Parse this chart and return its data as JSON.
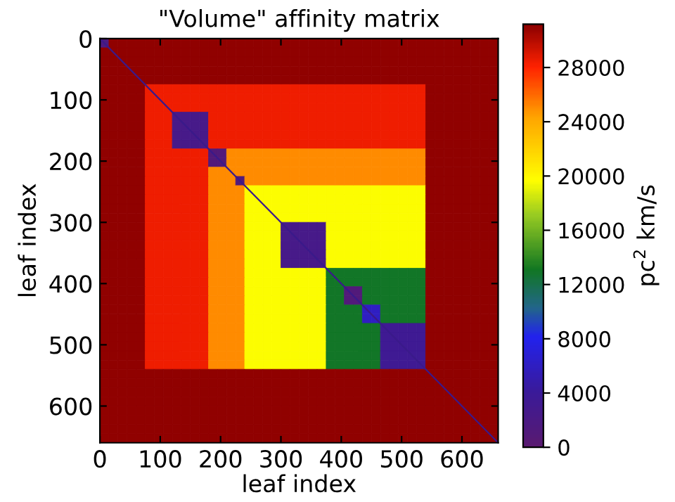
{
  "chart_data": {
    "type": "heatmap",
    "title": "\"Volume\" affinity matrix",
    "xlabel": "leaf index",
    "ylabel": "leaf index",
    "clabel": "pc$^{2}$ km/s",
    "cells": [
      [
        1500,
        31000,
        31000,
        31000,
        31000,
        31000,
        31000,
        31000,
        31000,
        31000,
        31000,
        31000,
        31000,
        31000,
        31000,
        31000,
        31000,
        31000,
        31000,
        31000,
        31000,
        31000,
        31000,
        31000,
        31000,
        31000,
        31000,
        31000,
        31000,
        31000,
        31000,
        31000,
        31000,
        31000,
        31000,
        31000,
        31000,
        31000,
        31000,
        31000,
        31000,
        31000,
        31000,
        31000
      ],
      [
        31000,
        31000,
        31000,
        31000,
        31000,
        31000,
        31000,
        31000,
        31000,
        31000,
        31000,
        31000,
        31000,
        31000,
        31000,
        31000,
        31000,
        31000,
        31000,
        31000,
        31000,
        31000,
        31000,
        31000,
        31000,
        31000,
        31000,
        31000,
        31000,
        31000,
        31000,
        31000,
        31000,
        31000,
        31000,
        31000,
        31000,
        31000,
        31000,
        31000,
        31000,
        31000,
        31000,
        31000
      ],
      [
        31000,
        31000,
        31000,
        31000,
        31000,
        31000,
        31000,
        31000,
        31000,
        31000,
        31000,
        31000,
        31000,
        31000,
        31000,
        31000,
        31000,
        31000,
        31000,
        31000,
        31000,
        31000,
        31000,
        31000,
        31000,
        31000,
        31000,
        31000,
        31000,
        31000,
        31000,
        31000,
        31000,
        31000,
        31000,
        31000,
        31000,
        31000,
        31000,
        31000,
        31000,
        31000,
        31000,
        31000
      ],
      [
        31000,
        31000,
        31000,
        31000,
        31000,
        31000,
        31000,
        31000,
        31000,
        31000,
        31000,
        31000,
        31000,
        31000,
        31000,
        31000,
        31000,
        31000,
        31000,
        31000,
        31000,
        31000,
        31000,
        31000,
        31000,
        31000,
        31000,
        31000,
        31000,
        31000,
        31000,
        31000,
        31000,
        31000,
        31000,
        31000,
        31000,
        31000,
        31000,
        31000,
        31000,
        31000,
        31000,
        31000
      ],
      [
        31000,
        31000,
        31000,
        31000,
        31000,
        31000,
        31000,
        31000,
        31000,
        31000,
        31000,
        31000,
        31000,
        31000,
        31000,
        31000,
        31000,
        31000,
        31000,
        31000,
        31000,
        31000,
        31000,
        31000,
        31000,
        31000,
        31000,
        31000,
        31000,
        31000,
        31000,
        31000,
        31000,
        31000,
        31000,
        31000,
        31000,
        31000,
        31000,
        31000,
        31000,
        31000,
        31000,
        31000
      ],
      [
        31000,
        31000,
        31000,
        31000,
        31000,
        28500,
        28500,
        28500,
        28500,
        28500,
        28500,
        28500,
        28500,
        28500,
        28500,
        28500,
        28500,
        28500,
        28500,
        28500,
        28500,
        28500,
        28500,
        28500,
        28500,
        28500,
        28500,
        28500,
        28500,
        28500,
        28500,
        28500,
        28500,
        28500,
        28500,
        28500,
        31000,
        31000,
        31000,
        31000,
        31000,
        31000,
        31000,
        31000
      ],
      [
        31000,
        31000,
        31000,
        31000,
        31000,
        28500,
        28500,
        28500,
        28500,
        28500,
        28500,
        28500,
        28500,
        28500,
        28500,
        28500,
        28500,
        28500,
        28500,
        28500,
        28500,
        28500,
        28500,
        28500,
        28500,
        28500,
        28500,
        28500,
        28500,
        28500,
        28500,
        28500,
        28500,
        28500,
        28500,
        28500,
        31000,
        31000,
        31000,
        31000,
        31000,
        31000,
        31000,
        31000
      ],
      [
        31000,
        31000,
        31000,
        31000,
        31000,
        28500,
        28500,
        28500,
        28500,
        28500,
        28500,
        28500,
        28500,
        28500,
        28500,
        28500,
        28500,
        28500,
        28500,
        28500,
        28500,
        28500,
        28500,
        28500,
        28500,
        28500,
        28500,
        28500,
        28500,
        28500,
        28500,
        28500,
        28500,
        28500,
        28500,
        28500,
        31000,
        31000,
        31000,
        31000,
        31000,
        31000,
        31000,
        31000
      ],
      [
        31000,
        31000,
        31000,
        31000,
        31000,
        28500,
        28500,
        28500,
        2500,
        2500,
        2500,
        2500,
        28500,
        28500,
        28500,
        28500,
        28500,
        28500,
        28500,
        28500,
        28500,
        28500,
        28500,
        28500,
        28500,
        28500,
        28500,
        28500,
        28500,
        28500,
        28500,
        28500,
        28500,
        28500,
        28500,
        28500,
        31000,
        31000,
        31000,
        31000,
        31000,
        31000,
        31000,
        31000
      ],
      [
        31000,
        31000,
        31000,
        31000,
        31000,
        28500,
        28500,
        28500,
        2500,
        2500,
        2500,
        2500,
        28500,
        28500,
        28500,
        28500,
        28500,
        28500,
        28500,
        28500,
        28500,
        28500,
        28500,
        28500,
        28500,
        28500,
        28500,
        28500,
        28500,
        28500,
        28500,
        28500,
        28500,
        28500,
        28500,
        28500,
        31000,
        31000,
        31000,
        31000,
        31000,
        31000,
        31000,
        31000
      ],
      [
        31000,
        31000,
        31000,
        31000,
        31000,
        28500,
        28500,
        28500,
        2500,
        2500,
        2500,
        2500,
        28500,
        28500,
        28500,
        28500,
        28500,
        28500,
        28500,
        28500,
        28500,
        28500,
        28500,
        28500,
        28500,
        28500,
        28500,
        28500,
        28500,
        28500,
        28500,
        28500,
        28500,
        28500,
        28500,
        28500,
        31000,
        31000,
        31000,
        31000,
        31000,
        31000,
        31000,
        31000
      ],
      [
        31000,
        31000,
        31000,
        31000,
        31000,
        28500,
        28500,
        28500,
        2500,
        2500,
        2500,
        2500,
        28500,
        28500,
        28500,
        28500,
        28500,
        28500,
        28500,
        28500,
        28500,
        28500,
        28500,
        28500,
        28500,
        28500,
        28500,
        28500,
        28500,
        28500,
        28500,
        28500,
        28500,
        28500,
        28500,
        28500,
        31000,
        31000,
        31000,
        31000,
        31000,
        31000,
        31000,
        31000
      ],
      [
        31000,
        31000,
        31000,
        31000,
        31000,
        28500,
        28500,
        28500,
        28500,
        28500,
        28500,
        28500,
        1000,
        1000,
        25000,
        25000,
        25000,
        25000,
        25000,
        25000,
        25000,
        25000,
        25000,
        25000,
        25000,
        25000,
        25000,
        25000,
        25000,
        25000,
        25000,
        25000,
        25000,
        25000,
        25000,
        25000,
        31000,
        31000,
        31000,
        31000,
        31000,
        31000,
        31000,
        31000
      ],
      [
        31000,
        31000,
        31000,
        31000,
        31000,
        28500,
        28500,
        28500,
        28500,
        28500,
        28500,
        28500,
        1000,
        1000,
        25000,
        25000,
        25000,
        25000,
        25000,
        25000,
        25000,
        25000,
        25000,
        25000,
        25000,
        25000,
        25000,
        25000,
        25000,
        25000,
        25000,
        25000,
        25000,
        25000,
        25000,
        25000,
        31000,
        31000,
        31000,
        31000,
        31000,
        31000,
        31000,
        31000
      ],
      [
        31000,
        31000,
        31000,
        31000,
        31000,
        28500,
        28500,
        28500,
        28500,
        28500,
        28500,
        28500,
        25000,
        25000,
        25000,
        25000,
        25000,
        25000,
        25000,
        25000,
        25000,
        25000,
        25000,
        25000,
        25000,
        25000,
        25000,
        25000,
        25000,
        25000,
        25000,
        25000,
        25000,
        25000,
        25000,
        25000,
        31000,
        31000,
        31000,
        31000,
        31000,
        31000,
        31000,
        31000
      ],
      [
        31000,
        31000,
        31000,
        31000,
        31000,
        28500,
        28500,
        28500,
        28500,
        28500,
        28500,
        28500,
        25000,
        25000,
        25000,
        1000,
        25000,
        25000,
        25000,
        25000,
        25000,
        25000,
        25000,
        25000,
        25000,
        25000,
        25000,
        25000,
        25000,
        25000,
        25000,
        25000,
        25000,
        25000,
        25000,
        25000,
        31000,
        31000,
        31000,
        31000,
        31000,
        31000,
        31000,
        31000
      ],
      [
        31000,
        31000,
        31000,
        31000,
        31000,
        28500,
        28500,
        28500,
        28500,
        28500,
        28500,
        28500,
        25000,
        25000,
        25000,
        25000,
        19500,
        19500,
        19500,
        19500,
        19500,
        19500,
        19500,
        19500,
        19500,
        19500,
        19500,
        19500,
        19500,
        19500,
        19500,
        19500,
        19500,
        19500,
        19500,
        19500,
        31000,
        31000,
        31000,
        31000,
        31000,
        31000,
        31000,
        31000
      ],
      [
        31000,
        31000,
        31000,
        31000,
        31000,
        28500,
        28500,
        28500,
        28500,
        28500,
        28500,
        28500,
        25000,
        25000,
        25000,
        25000,
        19500,
        19500,
        19500,
        19500,
        19500,
        19500,
        19500,
        19500,
        19500,
        19500,
        19500,
        19500,
        19500,
        19500,
        19500,
        19500,
        19500,
        19500,
        19500,
        19500,
        31000,
        31000,
        31000,
        31000,
        31000,
        31000,
        31000,
        31000
      ],
      [
        31000,
        31000,
        31000,
        31000,
        31000,
        28500,
        28500,
        28500,
        28500,
        28500,
        28500,
        28500,
        25000,
        25000,
        25000,
        25000,
        19500,
        19500,
        19500,
        19500,
        19500,
        19500,
        19500,
        19500,
        19500,
        19500,
        19500,
        19500,
        19500,
        19500,
        19500,
        19500,
        19500,
        19500,
        19500,
        19500,
        31000,
        31000,
        31000,
        31000,
        31000,
        31000,
        31000,
        31000
      ],
      [
        31000,
        31000,
        31000,
        31000,
        31000,
        28500,
        28500,
        28500,
        28500,
        28500,
        28500,
        28500,
        25000,
        25000,
        25000,
        25000,
        19500,
        19500,
        19500,
        19500,
        19500,
        19500,
        19500,
        19500,
        19500,
        19500,
        19500,
        19500,
        19500,
        19500,
        19500,
        19500,
        19500,
        19500,
        19500,
        19500,
        31000,
        31000,
        31000,
        31000,
        31000,
        31000,
        31000,
        31000
      ],
      [
        31000,
        31000,
        31000,
        31000,
        31000,
        28500,
        28500,
        28500,
        28500,
        28500,
        28500,
        28500,
        25000,
        25000,
        25000,
        25000,
        19500,
        19500,
        19500,
        19500,
        2500,
        2500,
        2500,
        2500,
        2500,
        19500,
        19500,
        19500,
        19500,
        19500,
        19500,
        19500,
        19500,
        19500,
        19500,
        19500,
        31000,
        31000,
        31000,
        31000,
        31000,
        31000,
        31000,
        31000
      ],
      [
        31000,
        31000,
        31000,
        31000,
        31000,
        28500,
        28500,
        28500,
        28500,
        28500,
        28500,
        28500,
        25000,
        25000,
        25000,
        25000,
        19500,
        19500,
        19500,
        19500,
        2500,
        2500,
        2500,
        2500,
        2500,
        19500,
        19500,
        19500,
        19500,
        19500,
        19500,
        19500,
        19500,
        19500,
        19500,
        19500,
        31000,
        31000,
        31000,
        31000,
        31000,
        31000,
        31000,
        31000
      ],
      [
        31000,
        31000,
        31000,
        31000,
        31000,
        28500,
        28500,
        28500,
        28500,
        28500,
        28500,
        28500,
        25000,
        25000,
        25000,
        25000,
        19500,
        19500,
        19500,
        19500,
        2500,
        2500,
        2500,
        2500,
        2500,
        19500,
        19500,
        19500,
        19500,
        19500,
        19500,
        19500,
        19500,
        19500,
        19500,
        19500,
        31000,
        31000,
        31000,
        31000,
        31000,
        31000,
        31000,
        31000
      ],
      [
        31000,
        31000,
        31000,
        31000,
        31000,
        28500,
        28500,
        28500,
        28500,
        28500,
        28500,
        28500,
        25000,
        25000,
        25000,
        25000,
        19500,
        19500,
        19500,
        19500,
        2500,
        2500,
        2500,
        2500,
        2500,
        19500,
        19500,
        19500,
        19500,
        19500,
        19500,
        19500,
        19500,
        19500,
        19500,
        19500,
        31000,
        31000,
        31000,
        31000,
        31000,
        31000,
        31000,
        31000
      ],
      [
        31000,
        31000,
        31000,
        31000,
        31000,
        28500,
        28500,
        28500,
        28500,
        28500,
        28500,
        28500,
        25000,
        25000,
        25000,
        25000,
        19500,
        19500,
        19500,
        19500,
        2500,
        2500,
        2500,
        2500,
        2500,
        19500,
        19500,
        19500,
        19500,
        19500,
        19500,
        19500,
        19500,
        19500,
        19500,
        19500,
        31000,
        31000,
        31000,
        31000,
        31000,
        31000,
        31000,
        31000
      ],
      [
        31000,
        31000,
        31000,
        31000,
        31000,
        28500,
        28500,
        28500,
        28500,
        28500,
        28500,
        28500,
        25000,
        25000,
        25000,
        25000,
        19500,
        19500,
        19500,
        19500,
        19500,
        19500,
        19500,
        19500,
        19500,
        13000,
        13000,
        13000,
        13000,
        13000,
        13000,
        13000,
        13000,
        13000,
        13000,
        13000,
        31000,
        31000,
        31000,
        31000,
        31000,
        31000,
        31000,
        31000
      ],
      [
        31000,
        31000,
        31000,
        31000,
        31000,
        28500,
        28500,
        28500,
        28500,
        28500,
        28500,
        28500,
        25000,
        25000,
        25000,
        25000,
        19500,
        19500,
        19500,
        19500,
        19500,
        19500,
        19500,
        19500,
        19500,
        13000,
        13000,
        13000,
        13000,
        13000,
        13000,
        13000,
        13000,
        13000,
        13000,
        13000,
        31000,
        31000,
        31000,
        31000,
        31000,
        31000,
        31000,
        31000
      ],
      [
        31000,
        31000,
        31000,
        31000,
        31000,
        28500,
        28500,
        28500,
        28500,
        28500,
        28500,
        28500,
        25000,
        25000,
        25000,
        25000,
        19500,
        19500,
        19500,
        19500,
        19500,
        19500,
        19500,
        19500,
        19500,
        13000,
        13000,
        1000,
        1000,
        13000,
        13000,
        13000,
        13000,
        13000,
        13000,
        13000,
        31000,
        31000,
        31000,
        31000,
        31000,
        31000,
        31000,
        31000
      ],
      [
        31000,
        31000,
        31000,
        31000,
        31000,
        28500,
        28500,
        28500,
        28500,
        28500,
        28500,
        28500,
        25000,
        25000,
        25000,
        25000,
        19500,
        19500,
        19500,
        19500,
        19500,
        19500,
        19500,
        19500,
        19500,
        13000,
        13000,
        1000,
        1000,
        13000,
        13000,
        13000,
        13000,
        13000,
        13000,
        13000,
        31000,
        31000,
        31000,
        31000,
        31000,
        31000,
        31000,
        31000
      ],
      [
        31000,
        31000,
        31000,
        31000,
        31000,
        28500,
        28500,
        28500,
        28500,
        28500,
        28500,
        28500,
        25000,
        25000,
        25000,
        25000,
        19500,
        19500,
        19500,
        19500,
        19500,
        19500,
        19500,
        19500,
        19500,
        13000,
        13000,
        13000,
        13000,
        6000,
        6000,
        13000,
        13000,
        13000,
        13000,
        13000,
        31000,
        31000,
        31000,
        31000,
        31000,
        31000,
        31000,
        31000
      ],
      [
        31000,
        31000,
        31000,
        31000,
        31000,
        28500,
        28500,
        28500,
        28500,
        28500,
        28500,
        28500,
        25000,
        25000,
        25000,
        25000,
        19500,
        19500,
        19500,
        19500,
        19500,
        19500,
        19500,
        19500,
        19500,
        13000,
        13000,
        13000,
        13000,
        6000,
        6000,
        13000,
        13000,
        13000,
        13000,
        13000,
        31000,
        31000,
        31000,
        31000,
        31000,
        31000,
        31000,
        31000
      ],
      [
        31000,
        31000,
        31000,
        31000,
        31000,
        28500,
        28500,
        28500,
        28500,
        28500,
        28500,
        28500,
        25000,
        25000,
        25000,
        25000,
        19500,
        19500,
        19500,
        19500,
        19500,
        19500,
        19500,
        19500,
        19500,
        13000,
        13000,
        13000,
        13000,
        13000,
        13000,
        3500,
        3500,
        3500,
        3500,
        3500,
        31000,
        31000,
        31000,
        31000,
        31000,
        31000,
        31000,
        31000
      ],
      [
        31000,
        31000,
        31000,
        31000,
        31000,
        28500,
        28500,
        28500,
        28500,
        28500,
        28500,
        28500,
        25000,
        25000,
        25000,
        25000,
        19500,
        19500,
        19500,
        19500,
        19500,
        19500,
        19500,
        19500,
        19500,
        13000,
        13000,
        13000,
        13000,
        13000,
        13000,
        3500,
        3500,
        3500,
        3500,
        3500,
        31000,
        31000,
        31000,
        31000,
        31000,
        31000,
        31000,
        31000
      ],
      [
        31000,
        31000,
        31000,
        31000,
        31000,
        28500,
        28500,
        28500,
        28500,
        28500,
        28500,
        28500,
        25000,
        25000,
        25000,
        25000,
        19500,
        19500,
        19500,
        19500,
        19500,
        19500,
        19500,
        19500,
        19500,
        13000,
        13000,
        13000,
        13000,
        13000,
        13000,
        3500,
        3500,
        3500,
        3500,
        3500,
        31000,
        31000,
        31000,
        31000,
        31000,
        31000,
        31000,
        31000
      ],
      [
        31000,
        31000,
        31000,
        31000,
        31000,
        28500,
        28500,
        28500,
        28500,
        28500,
        28500,
        28500,
        25000,
        25000,
        25000,
        25000,
        19500,
        19500,
        19500,
        19500,
        19500,
        19500,
        19500,
        19500,
        19500,
        13000,
        13000,
        13000,
        13000,
        13000,
        13000,
        3500,
        3500,
        3500,
        3500,
        3500,
        31000,
        31000,
        31000,
        31000,
        31000,
        31000,
        31000,
        31000
      ],
      [
        31000,
        31000,
        31000,
        31000,
        31000,
        28500,
        28500,
        28500,
        28500,
        28500,
        28500,
        28500,
        25000,
        25000,
        25000,
        25000,
        19500,
        19500,
        19500,
        19500,
        19500,
        19500,
        19500,
        19500,
        19500,
        13000,
        13000,
        13000,
        13000,
        13000,
        13000,
        3500,
        3500,
        3500,
        3500,
        3500,
        31000,
        31000,
        31000,
        31000,
        31000,
        31000,
        31000,
        31000
      ],
      [
        31000,
        31000,
        31000,
        31000,
        31000,
        31000,
        31000,
        31000,
        31000,
        31000,
        31000,
        31000,
        31000,
        31000,
        31000,
        31000,
        31000,
        31000,
        31000,
        31000,
        31000,
        31000,
        31000,
        31000,
        31000,
        31000,
        31000,
        31000,
        31000,
        31000,
        31000,
        31000,
        31000,
        31000,
        31000,
        31000,
        31000,
        31000,
        31000,
        31000,
        31000,
        31000,
        31000,
        31000
      ],
      [
        31000,
        31000,
        31000,
        31000,
        31000,
        31000,
        31000,
        31000,
        31000,
        31000,
        31000,
        31000,
        31000,
        31000,
        31000,
        31000,
        31000,
        31000,
        31000,
        31000,
        31000,
        31000,
        31000,
        31000,
        31000,
        31000,
        31000,
        31000,
        31000,
        31000,
        31000,
        31000,
        31000,
        31000,
        31000,
        31000,
        31000,
        31000,
        31000,
        31000,
        31000,
        31000,
        31000,
        31000
      ],
      [
        31000,
        31000,
        31000,
        31000,
        31000,
        31000,
        31000,
        31000,
        31000,
        31000,
        31000,
        31000,
        31000,
        31000,
        31000,
        31000,
        31000,
        31000,
        31000,
        31000,
        31000,
        31000,
        31000,
        31000,
        31000,
        31000,
        31000,
        31000,
        31000,
        31000,
        31000,
        31000,
        31000,
        31000,
        31000,
        31000,
        31000,
        31000,
        31000,
        31000,
        31000,
        31000,
        31000,
        31000
      ],
      [
        31000,
        31000,
        31000,
        31000,
        31000,
        31000,
        31000,
        31000,
        31000,
        31000,
        31000,
        31000,
        31000,
        31000,
        31000,
        31000,
        31000,
        31000,
        31000,
        31000,
        31000,
        31000,
        31000,
        31000,
        31000,
        31000,
        31000,
        31000,
        31000,
        31000,
        31000,
        31000,
        31000,
        31000,
        31000,
        31000,
        31000,
        31000,
        31000,
        31000,
        31000,
        31000,
        31000,
        31000
      ],
      [
        31000,
        31000,
        31000,
        31000,
        31000,
        31000,
        31000,
        31000,
        31000,
        31000,
        31000,
        31000,
        31000,
        31000,
        31000,
        31000,
        31000,
        31000,
        31000,
        31000,
        31000,
        31000,
        31000,
        31000,
        31000,
        31000,
        31000,
        31000,
        31000,
        31000,
        31000,
        31000,
        31000,
        31000,
        31000,
        31000,
        31000,
        31000,
        31000,
        31000,
        31000,
        31000,
        31000,
        31000
      ],
      [
        31000,
        31000,
        31000,
        31000,
        31000,
        31000,
        31000,
        31000,
        31000,
        31000,
        31000,
        31000,
        31000,
        31000,
        31000,
        31000,
        31000,
        31000,
        31000,
        31000,
        31000,
        31000,
        31000,
        31000,
        31000,
        31000,
        31000,
        31000,
        31000,
        31000,
        31000,
        31000,
        31000,
        31000,
        31000,
        31000,
        31000,
        31000,
        31000,
        31000,
        31000,
        31000,
        31000,
        31000
      ],
      [
        31000,
        31000,
        31000,
        31000,
        31000,
        31000,
        31000,
        31000,
        31000,
        31000,
        31000,
        31000,
        31000,
        31000,
        31000,
        31000,
        31000,
        31000,
        31000,
        31000,
        31000,
        31000,
        31000,
        31000,
        31000,
        31000,
        31000,
        31000,
        31000,
        31000,
        31000,
        31000,
        31000,
        31000,
        31000,
        31000,
        31000,
        31000,
        31000,
        31000,
        31000,
        31000,
        31000,
        31000
      ],
      [
        31000,
        31000,
        31000,
        31000,
        31000,
        31000,
        31000,
        31000,
        31000,
        31000,
        31000,
        31000,
        31000,
        31000,
        31000,
        31000,
        31000,
        31000,
        31000,
        31000,
        31000,
        31000,
        31000,
        31000,
        31000,
        31000,
        31000,
        31000,
        31000,
        31000,
        31000,
        31000,
        31000,
        31000,
        31000,
        31000,
        31000,
        31000,
        31000,
        31000,
        31000,
        31000,
        31000,
        31000
      ]
    ],
    "series": [
      {
        "type": "line",
        "x": [
          0,
          660
        ],
        "values": [
          0,
          660
        ],
        "color": "#3a1a8a"
      }
    ],
    "xlim": [
      0,
      660
    ],
    "ylim": [
      660,
      0
    ],
    "xticks": [
      0,
      100,
      200,
      300,
      400,
      500,
      600
    ],
    "yticks": [
      0,
      100,
      200,
      300,
      400,
      500,
      600
    ],
    "clim": [
      0,
      31200
    ],
    "cticks": [
      0,
      4000,
      8000,
      12000,
      16000,
      20000,
      24000,
      28000
    ]
  }
}
